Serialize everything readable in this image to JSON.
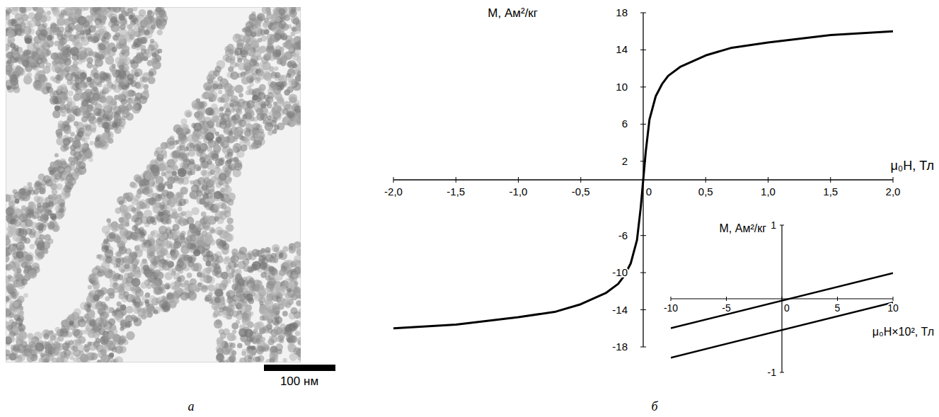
{
  "figure": {
    "panel_labels": [
      "а",
      "б"
    ],
    "scale_bar": "100 нм"
  },
  "chart_data": [
    {
      "type": "line",
      "x_label": "μ₀H, Тл",
      "y_label": "M, Ам²/кг",
      "x": [
        -2,
        -1.5,
        -1,
        -0.7,
        -0.5,
        -0.3,
        -0.2,
        -0.15,
        -0.1,
        -0.05,
        -0.02,
        0,
        0.02,
        0.05,
        0.1,
        0.15,
        0.2,
        0.3,
        0.5,
        0.7,
        1,
        1.5,
        2
      ],
      "values": [
        -16,
        -15.6,
        -14.8,
        -14.2,
        -13.4,
        -12.2,
        -11.2,
        -10.3,
        -9,
        -6.5,
        -3,
        0,
        3,
        6.5,
        9,
        10.3,
        11.2,
        12.2,
        13.4,
        14.2,
        14.8,
        15.6,
        16
      ],
      "color": "#000000",
      "xlim": [
        -2,
        2
      ],
      "xticks": [
        {
          "value": -2,
          "label": "-2,0"
        },
        {
          "value": -1.5,
          "label": "-1,5"
        },
        {
          "value": -1,
          "label": "-1,0"
        },
        {
          "value": -0.5,
          "label": "-0,5"
        },
        0,
        {
          "value": 0.5,
          "label": "0,5"
        },
        {
          "value": 1,
          "label": "1,0"
        },
        {
          "value": 1.5,
          "label": "1,5"
        },
        {
          "value": 2,
          "label": "2,0"
        }
      ],
      "ylim": [
        -18,
        18
      ],
      "yticks": [
        -18,
        -14,
        -10,
        -6,
        2,
        6,
        10,
        14,
        18
      ],
      "grid": false
    },
    {
      "type": "line",
      "x_label": "μ₀H×10², Тл",
      "y_label": "M, Ам²/кг",
      "x": [
        -10,
        10
      ],
      "series": [
        {
          "color": "#000000",
          "values": [
            -0.4,
            0.35
          ]
        },
        {
          "color": "#000000",
          "values": [
            -0.8,
            -0.05
          ]
        }
      ],
      "xlim": [
        -10,
        10
      ],
      "xticks": [
        -10,
        -5,
        0,
        5,
        10
      ],
      "ylim": [
        -1,
        1
      ],
      "yticks": [
        -1,
        1
      ],
      "grid": false
    }
  ]
}
